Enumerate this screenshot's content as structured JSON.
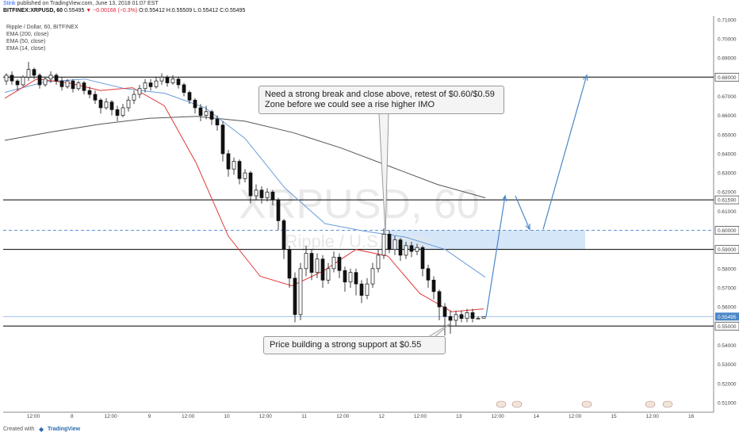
{
  "header": {
    "author": "Stink",
    "published": "published on TradingView.com, June 13, 2018 01:07 EST",
    "symbol_prefix": "BITFINEX:XRPUSD, 60",
    "open_value": "0.55495",
    "change": "▼ −0.00166 (−0.3%)",
    "ohlc": "O:0.55412 H:0.55509 L:0.55412 C:0.55495"
  },
  "legend": {
    "title": "Ripple / Dollar, 60, BITFINEX",
    "ema200": "EMA (200, close)",
    "ema50": "EMA (50, close)",
    "ema14": "EMA (14, close)"
  },
  "watermark": {
    "line1": "XRPUSD, 60",
    "line2": "Ripple / U.S. Dollar"
  },
  "annotations": {
    "top": "Need a strong break and close above, retest of $0.60/$0.59 Zone before we could see a rise higher IMO",
    "bottom": "Price building a strong support at $0.55"
  },
  "footer": {
    "created_with": "Created with",
    "brand": "TradingView"
  },
  "colors": {
    "up": "#ffffff",
    "down": "#111111",
    "ema14": "#e03a3a",
    "ema50": "#6b9bd8",
    "ema200": "#555555",
    "zone": "#cfe2f8",
    "arrow": "#4a86c8",
    "dashed": "#5b95d8"
  },
  "chart_data": {
    "type": "candlestick",
    "ylim": [
      0.505,
      0.712
    ],
    "y_ticks": [
      "0.71000",
      "0.70000",
      "0.69000",
      "0.68000",
      "0.67000",
      "0.66000",
      "0.65000",
      "0.64000",
      "0.63000",
      "0.62000",
      "0.61590",
      "0.61000",
      "0.60000",
      "0.59000",
      "0.58000",
      "0.57000",
      "0.56000",
      "0.55495",
      "0.55000",
      "0.54000",
      "0.53000",
      "0.52000",
      "0.51000"
    ],
    "highlighted_ticks": [
      {
        "label": "0.68000",
        "value": 0.68,
        "style": "line"
      },
      {
        "label": "0.61590",
        "value": 0.6159,
        "style": "line"
      },
      {
        "label": "0.60000",
        "value": 0.6,
        "style": "dashed"
      },
      {
        "label": "0.59000",
        "value": 0.59,
        "style": "line"
      },
      {
        "label": "0.55495",
        "value": 0.55495,
        "style": "current"
      },
      {
        "label": "0.55000",
        "value": 0.55,
        "style": "line"
      }
    ],
    "x_labels": [
      "12:00",
      "8",
      "12:00",
      "9",
      "12:00",
      "10",
      "12:00",
      "11",
      "12:00",
      "12",
      "12:00",
      "13",
      "12:00",
      "14",
      "12:00",
      "15",
      "12:00",
      "16"
    ],
    "zone": {
      "from": 0.59,
      "to": 0.6
    },
    "ema200": [
      0.647,
      0.6515,
      0.6555,
      0.6585,
      0.6595,
      0.657,
      0.651,
      0.643,
      0.6335,
      0.624,
      0.617
    ],
    "ema50": [
      0.672,
      0.6775,
      0.679,
      0.674,
      0.6715,
      0.664,
      0.648,
      0.622,
      0.6035,
      0.5995,
      0.5965,
      0.59,
      0.5755
    ],
    "ema14": [
      0.669,
      0.679,
      0.677,
      0.673,
      0.6745,
      0.665,
      0.635,
      0.597,
      0.576,
      0.571,
      0.579,
      0.59,
      0.5865,
      0.567,
      0.5575,
      0.559
    ],
    "candles": [
      [
        0.678,
        0.681,
        0.682,
        0.676
      ],
      [
        0.681,
        0.678,
        0.683,
        0.676
      ],
      [
        0.678,
        0.676,
        0.679,
        0.673
      ],
      [
        0.676,
        0.68,
        0.681,
        0.675
      ],
      [
        0.68,
        0.684,
        0.688,
        0.678
      ],
      [
        0.684,
        0.681,
        0.685,
        0.679
      ],
      [
        0.681,
        0.676,
        0.682,
        0.674
      ],
      [
        0.676,
        0.679,
        0.68,
        0.675
      ],
      [
        0.679,
        0.681,
        0.683,
        0.677
      ],
      [
        0.681,
        0.678,
        0.682,
        0.676
      ],
      [
        0.678,
        0.675,
        0.68,
        0.673
      ],
      [
        0.675,
        0.678,
        0.679,
        0.674
      ],
      [
        0.678,
        0.674,
        0.679,
        0.672
      ],
      [
        0.674,
        0.677,
        0.678,
        0.673
      ],
      [
        0.677,
        0.673,
        0.678,
        0.671
      ],
      [
        0.673,
        0.671,
        0.675,
        0.669
      ],
      [
        0.671,
        0.668,
        0.673,
        0.666
      ],
      [
        0.668,
        0.664,
        0.669,
        0.661
      ],
      [
        0.664,
        0.667,
        0.669,
        0.663
      ],
      [
        0.667,
        0.663,
        0.668,
        0.66
      ],
      [
        0.663,
        0.66,
        0.665,
        0.657
      ],
      [
        0.66,
        0.664,
        0.666,
        0.659
      ],
      [
        0.664,
        0.668,
        0.67,
        0.662
      ],
      [
        0.668,
        0.671,
        0.673,
        0.666
      ],
      [
        0.671,
        0.674,
        0.676,
        0.669
      ],
      [
        0.674,
        0.677,
        0.679,
        0.672
      ],
      [
        0.677,
        0.675,
        0.679,
        0.673
      ],
      [
        0.675,
        0.678,
        0.68,
        0.674
      ],
      [
        0.678,
        0.68,
        0.682,
        0.676
      ],
      [
        0.68,
        0.677,
        0.681,
        0.675
      ],
      [
        0.677,
        0.679,
        0.681,
        0.676
      ],
      [
        0.679,
        0.676,
        0.68,
        0.674
      ],
      [
        0.676,
        0.672,
        0.677,
        0.67
      ],
      [
        0.672,
        0.668,
        0.673,
        0.666
      ],
      [
        0.668,
        0.664,
        0.669,
        0.661
      ],
      [
        0.664,
        0.66,
        0.666,
        0.657
      ],
      [
        0.66,
        0.662,
        0.665,
        0.658
      ],
      [
        0.662,
        0.658,
        0.663,
        0.655
      ],
      [
        0.658,
        0.655,
        0.66,
        0.652
      ],
      [
        0.655,
        0.64,
        0.657,
        0.636
      ],
      [
        0.64,
        0.632,
        0.642,
        0.628
      ],
      [
        0.632,
        0.636,
        0.638,
        0.629
      ],
      [
        0.636,
        0.627,
        0.637,
        0.624
      ],
      [
        0.627,
        0.63,
        0.632,
        0.625
      ],
      [
        0.63,
        0.618,
        0.631,
        0.614
      ],
      [
        0.618,
        0.621,
        0.624,
        0.616
      ],
      [
        0.621,
        0.617,
        0.623,
        0.614
      ],
      [
        0.617,
        0.62,
        0.622,
        0.615
      ],
      [
        0.62,
        0.616,
        0.621,
        0.613
      ],
      [
        0.616,
        0.605,
        0.617,
        0.6
      ],
      [
        0.605,
        0.59,
        0.606,
        0.585
      ],
      [
        0.59,
        0.575,
        0.592,
        0.57
      ],
      [
        0.575,
        0.556,
        0.578,
        0.552
      ],
      [
        0.556,
        0.58,
        0.583,
        0.553
      ],
      [
        0.58,
        0.588,
        0.592,
        0.576
      ],
      [
        0.588,
        0.578,
        0.59,
        0.574
      ],
      [
        0.578,
        0.585,
        0.588,
        0.575
      ],
      [
        0.585,
        0.574,
        0.587,
        0.57
      ],
      [
        0.574,
        0.58,
        0.583,
        0.572
      ],
      [
        0.58,
        0.586,
        0.589,
        0.578
      ],
      [
        0.586,
        0.579,
        0.588,
        0.575
      ],
      [
        0.579,
        0.573,
        0.581,
        0.568
      ],
      [
        0.573,
        0.578,
        0.58,
        0.57
      ],
      [
        0.578,
        0.572,
        0.58,
        0.566
      ],
      [
        0.572,
        0.566,
        0.574,
        0.562
      ],
      [
        0.566,
        0.572,
        0.575,
        0.564
      ],
      [
        0.572,
        0.58,
        0.583,
        0.57
      ],
      [
        0.58,
        0.587,
        0.59,
        0.578
      ],
      [
        0.587,
        0.598,
        0.601,
        0.585
      ],
      [
        0.598,
        0.59,
        0.6,
        0.588
      ],
      [
        0.59,
        0.595,
        0.597,
        0.587
      ],
      [
        0.595,
        0.587,
        0.596,
        0.584
      ],
      [
        0.587,
        0.592,
        0.594,
        0.585
      ],
      [
        0.592,
        0.589,
        0.594,
        0.586
      ],
      [
        0.589,
        0.591,
        0.593,
        0.587
      ],
      [
        0.591,
        0.58,
        0.592,
        0.576
      ],
      [
        0.58,
        0.574,
        0.582,
        0.57
      ],
      [
        0.574,
        0.568,
        0.576,
        0.564
      ],
      [
        0.568,
        0.56,
        0.569,
        0.553
      ],
      [
        0.56,
        0.555,
        0.562,
        0.545
      ],
      [
        0.555,
        0.553,
        0.558,
        0.546
      ],
      [
        0.553,
        0.556,
        0.558,
        0.55
      ],
      [
        0.556,
        0.554,
        0.558,
        0.552
      ],
      [
        0.554,
        0.557,
        0.559,
        0.552
      ],
      [
        0.557,
        0.554,
        0.559,
        0.552
      ],
      [
        0.554,
        0.5541,
        0.5551,
        0.5541
      ],
      [
        0.5541,
        0.55495,
        0.55509,
        0.55412
      ]
    ],
    "projection": [
      [
        0.555,
        0.618
      ],
      [
        0.618,
        0.6005
      ],
      [
        0.6005,
        0.681
      ]
    ]
  }
}
